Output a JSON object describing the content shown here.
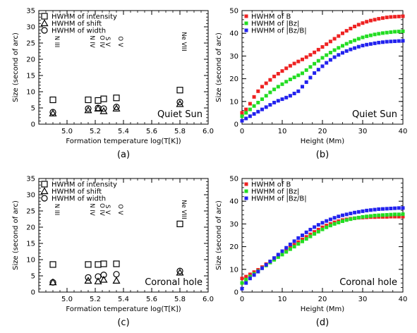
{
  "chart_data": [
    {
      "id": "a",
      "type": "scatter",
      "caption": "(a)",
      "annotation": "Quiet Sun",
      "xlabel": "Formation temperature log(T[K])",
      "ylabel": "Size (second of arc)",
      "xlim": [
        4.8,
        6.0
      ],
      "ylim": [
        0,
        35
      ],
      "xticks": [
        "5.0",
        "5.2",
        "5.4",
        "5.6",
        "5.8",
        "6.0"
      ],
      "yticks": [
        "0",
        "5",
        "10",
        "15",
        "20",
        "25",
        "30",
        "35"
      ],
      "legend_position": "top-left",
      "lines": [
        {
          "label": "N III",
          "x": 4.9
        },
        {
          "label": "N IV",
          "x": 5.15
        },
        {
          "label": "O IV",
          "x": 5.22
        },
        {
          "label": "S V",
          "x": 5.26
        },
        {
          "label": "O V",
          "x": 5.35
        },
        {
          "label": "Ne VIII",
          "x": 5.8
        }
      ],
      "series": [
        {
          "name": "HWHM of intensity",
          "marker": "square",
          "x": [
            4.9,
            5.15,
            5.22,
            5.26,
            5.35,
            5.8
          ],
          "y": [
            7.5,
            7.5,
            7.3,
            7.8,
            8.1,
            10.5
          ]
        },
        {
          "name": "HWHM of shift",
          "marker": "triangle",
          "x": [
            4.9,
            5.15,
            5.22,
            5.26,
            5.35,
            5.8
          ],
          "y": [
            3.3,
            4.3,
            4.8,
            4.0,
            4.8,
            6.2
          ]
        },
        {
          "name": "HWHM of width",
          "marker": "circle",
          "x": [
            4.9,
            5.15,
            5.22,
            5.26,
            5.35,
            5.8
          ],
          "y": [
            3.7,
            4.8,
            5.0,
            4.8,
            5.3,
            6.8
          ]
        }
      ]
    },
    {
      "id": "b",
      "type": "scatter",
      "caption": "(b)",
      "annotation": "Quiet Sun",
      "xlabel": "Height (Mm)",
      "ylabel": "Size (second of arc)",
      "xlim": [
        0,
        40
      ],
      "ylim": [
        0,
        50
      ],
      "xticks": [
        "0",
        "10",
        "20",
        "30",
        "40"
      ],
      "yticks": [
        "0",
        "10",
        "20",
        "30",
        "40",
        "50"
      ],
      "legend_position": "top-left",
      "x": [
        0,
        1,
        2,
        3,
        4,
        5,
        6,
        7,
        8,
        9,
        10,
        11,
        12,
        13,
        14,
        15,
        16,
        17,
        18,
        19,
        20,
        21,
        22,
        23,
        24,
        25,
        26,
        27,
        28,
        29,
        30,
        31,
        32,
        33,
        34,
        35,
        36,
        37,
        38,
        39,
        40
      ],
      "series": [
        {
          "name": "HWHM of B",
          "color": "#ee2222",
          "y": [
            5.0,
            6.5,
            9.0,
            12.0,
            14.5,
            16.5,
            18.0,
            19.5,
            21.0,
            22.2,
            23.4,
            24.6,
            25.7,
            26.7,
            27.6,
            28.5,
            29.5,
            30.5,
            31.6,
            32.8,
            34.0,
            35.2,
            36.4,
            37.6,
            38.8,
            40.0,
            41.1,
            42.1,
            43.0,
            43.8,
            44.5,
            45.1,
            45.6,
            46.0,
            46.4,
            46.7,
            47.0,
            47.2,
            47.3,
            47.4,
            47.5
          ]
        },
        {
          "name": "HWHM of |Bz|",
          "color": "#22dd22",
          "y": [
            3.5,
            5.0,
            6.5,
            8.0,
            9.5,
            11.0,
            12.5,
            14.0,
            15.3,
            16.5,
            17.6,
            18.7,
            19.7,
            20.6,
            21.5,
            22.4,
            23.8,
            25.2,
            26.6,
            27.9,
            29.2,
            30.4,
            31.5,
            32.6,
            33.6,
            34.5,
            35.4,
            36.2,
            36.9,
            37.6,
            38.2,
            38.7,
            39.1,
            39.5,
            39.8,
            40.1,
            40.3,
            40.5,
            40.7,
            40.8,
            40.9
          ]
        },
        {
          "name": "HWHM of |Bz/B|",
          "color": "#2222ee",
          "y": [
            1.5,
            2.5,
            3.5,
            4.5,
            5.5,
            6.5,
            7.5,
            8.5,
            9.5,
            10.3,
            11.0,
            11.7,
            12.5,
            13.5,
            14.5,
            16.5,
            18.5,
            20.5,
            22.5,
            24.0,
            25.5,
            27.0,
            28.3,
            29.5,
            30.5,
            31.4,
            32.2,
            32.9,
            33.5,
            34.1,
            34.6,
            35.0,
            35.3,
            35.6,
            35.9,
            36.1,
            36.3,
            36.4,
            36.5,
            36.6,
            36.7
          ]
        }
      ]
    },
    {
      "id": "c",
      "type": "scatter",
      "caption": "(c)",
      "annotation": "Coronal hole",
      "xlabel": "Formation temperature log(T[K])",
      "ylabel": "Size (second of arc)",
      "xlim": [
        4.8,
        6.0
      ],
      "ylim": [
        0,
        35
      ],
      "xticks": [
        "5.0",
        "5.2",
        "5.4",
        "5.6",
        "5.8",
        "6.0"
      ],
      "yticks": [
        "0",
        "5",
        "10",
        "15",
        "20",
        "25",
        "30",
        "35"
      ],
      "legend_position": "top-left",
      "lines": [
        {
          "label": "N III",
          "x": 4.9
        },
        {
          "label": "N IV",
          "x": 5.15
        },
        {
          "label": "O IV",
          "x": 5.22
        },
        {
          "label": "S V",
          "x": 5.26
        },
        {
          "label": "O V",
          "x": 5.35
        },
        {
          "label": "Ne VIII",
          "x": 5.8
        }
      ],
      "series": [
        {
          "name": "HWHM of intensity",
          "marker": "square",
          "x": [
            4.9,
            5.15,
            5.22,
            5.26,
            5.35,
            5.8
          ],
          "y": [
            8.5,
            8.5,
            8.5,
            8.7,
            8.7,
            21.0
          ]
        },
        {
          "name": "HWHM of shift",
          "marker": "triangle",
          "x": [
            4.9,
            5.15,
            5.22,
            5.26,
            5.35,
            5.8
          ],
          "y": [
            3.0,
            3.5,
            3.3,
            3.8,
            3.5,
            6.0
          ]
        },
        {
          "name": "HWHM of width",
          "marker": "circle",
          "x": [
            4.9,
            5.15,
            5.22,
            5.26,
            5.35,
            5.8
          ],
          "y": [
            3.0,
            4.5,
            4.8,
            5.3,
            5.5,
            6.5
          ]
        }
      ]
    },
    {
      "id": "d",
      "type": "scatter",
      "caption": "(d)",
      "annotation": "Coronal hole",
      "xlabel": "Height (Mm)",
      "ylabel": "Size (second of arc)",
      "xlim": [
        0,
        40
      ],
      "ylim": [
        0,
        50
      ],
      "xticks": [
        "0",
        "10",
        "20",
        "30",
        "40"
      ],
      "yticks": [
        "0",
        "10",
        "20",
        "30",
        "40",
        "50"
      ],
      "legend_position": "top-left",
      "x": [
        0,
        1,
        2,
        3,
        4,
        5,
        6,
        7,
        8,
        9,
        10,
        11,
        12,
        13,
        14,
        15,
        16,
        17,
        18,
        19,
        20,
        21,
        22,
        23,
        24,
        25,
        26,
        27,
        28,
        29,
        30,
        31,
        32,
        33,
        34,
        35,
        36,
        37,
        38,
        39,
        40
      ],
      "series": [
        {
          "name": "HWHM of B",
          "color": "#ee2222",
          "y": [
            6.0,
            6.8,
            7.8,
            8.8,
            9.8,
            11.0,
            12.3,
            13.5,
            14.8,
            16.0,
            17.2,
            18.5,
            19.7,
            20.8,
            22.0,
            23.2,
            24.3,
            25.4,
            26.5,
            27.5,
            28.5,
            29.3,
            30.0,
            30.7,
            31.2,
            31.7,
            32.0,
            32.3,
            32.5,
            32.7,
            32.8,
            32.9,
            33.0,
            33.0,
            33.1,
            33.1,
            33.1,
            33.2,
            33.2,
            33.2,
            33.2
          ]
        },
        {
          "name": "HWHM of |Bz|",
          "color": "#22dd22",
          "y": [
            4.0,
            5.5,
            6.8,
            8.0,
            9.2,
            10.5,
            11.7,
            13.0,
            14.2,
            15.4,
            16.5,
            17.7,
            18.9,
            20.0,
            21.2,
            22.3,
            23.4,
            24.5,
            25.6,
            26.6,
            27.6,
            28.5,
            29.3,
            30.0,
            30.6,
            31.2,
            31.7,
            32.1,
            32.5,
            32.8,
            33.1,
            33.3,
            33.5,
            33.7,
            33.8,
            33.9,
            34.0,
            34.1,
            34.2,
            34.2,
            34.3
          ]
        },
        {
          "name": "HWHM of |Bz/B|",
          "color": "#2222ee",
          "y": [
            1.5,
            4.0,
            6.0,
            7.5,
            9.0,
            10.5,
            12.0,
            13.5,
            15.0,
            16.5,
            18.0,
            19.5,
            21.0,
            22.4,
            23.8,
            25.0,
            26.3,
            27.5,
            28.6,
            29.6,
            30.5,
            31.3,
            32.0,
            32.7,
            33.3,
            33.8,
            34.2,
            34.6,
            35.0,
            35.3,
            35.6,
            35.9,
            36.1,
            36.3,
            36.5,
            36.6,
            36.7,
            36.8,
            36.9,
            37.0,
            37.0
          ]
        }
      ]
    }
  ]
}
